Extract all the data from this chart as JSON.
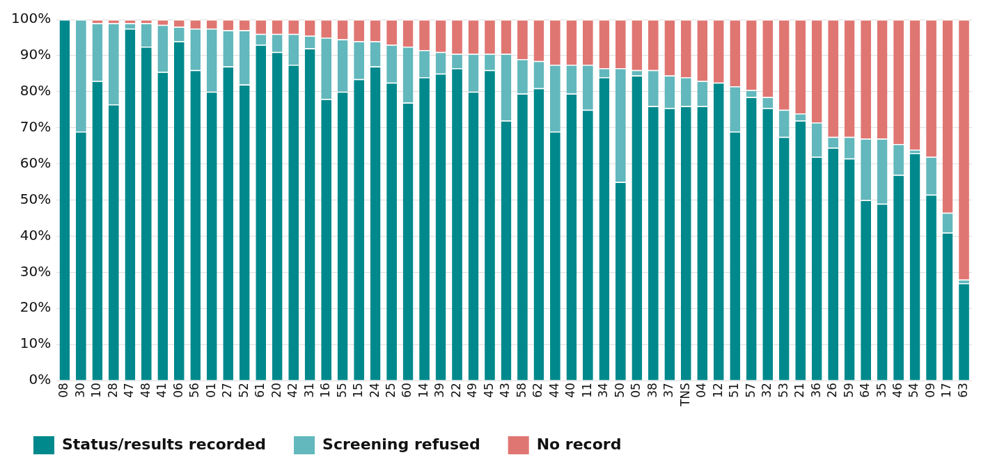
{
  "chart_data": {
    "type": "bar",
    "stacked": true,
    "legend": "bottom",
    "grid": "y",
    "categories": [
      "08",
      "30",
      "10",
      "28",
      "47",
      "48",
      "41",
      "06",
      "56",
      "01",
      "27",
      "52",
      "61",
      "20",
      "42",
      "31",
      "16",
      "55",
      "15",
      "24",
      "25",
      "60",
      "14",
      "39",
      "22",
      "49",
      "45",
      "43",
      "58",
      "62",
      "44",
      "40",
      "11",
      "34",
      "50",
      "05",
      "38",
      "37",
      "TNS",
      "04",
      "12",
      "51",
      "57",
      "32",
      "53",
      "21",
      "36",
      "26",
      "59",
      "64",
      "35",
      "46",
      "54",
      "09",
      "17",
      "63"
    ],
    "ylim": [
      0,
      100
    ],
    "yticks": [
      {
        "value": 0,
        "label": "0%"
      },
      {
        "value": 10,
        "label": "10%"
      },
      {
        "value": 20,
        "label": "20%"
      },
      {
        "value": 30,
        "label": "30%"
      },
      {
        "value": 40,
        "label": "40%"
      },
      {
        "value": 50,
        "label": "50%"
      },
      {
        "value": 60,
        "label": "60%"
      },
      {
        "value": 70,
        "label": "70%"
      },
      {
        "value": 80,
        "label": "80%"
      },
      {
        "value": 90,
        "label": "90%"
      },
      {
        "value": 100,
        "label": "100%"
      }
    ],
    "series": [
      {
        "name": "Status/results recorded",
        "color": "#00898c",
        "values": [
          100,
          69,
          83,
          76.5,
          97.5,
          92.5,
          85.5,
          94,
          86,
          80,
          87,
          82,
          93,
          91,
          87.5,
          92,
          78,
          80,
          83.5,
          87,
          82.5,
          77,
          84,
          85,
          86.5,
          80,
          86,
          72,
          79.5,
          81,
          69,
          79.5,
          75,
          84,
          55,
          84.5,
          76,
          75.5,
          76,
          76,
          82.5,
          69,
          78.5,
          75.5,
          67.5,
          72,
          62,
          64.5,
          61.5,
          50,
          49,
          57,
          63,
          51.5,
          41,
          27
        ]
      },
      {
        "name": "Screening refused",
        "color": "#62b8bc",
        "values": [
          0,
          31,
          16,
          22.5,
          1.5,
          6.5,
          13,
          4,
          11.5,
          17.5,
          10,
          15,
          3,
          5,
          8.5,
          3.5,
          17,
          14.5,
          10.5,
          7,
          10.5,
          15.5,
          7.5,
          6,
          4,
          10.5,
          4.5,
          18.5,
          9.5,
          7.5,
          18.5,
          8,
          12.5,
          2.5,
          31.5,
          1.5,
          10,
          9,
          8,
          7,
          0,
          12.5,
          2,
          3,
          7.5,
          2,
          9.5,
          3,
          6,
          17,
          18,
          8.5,
          1,
          10.5,
          5.5,
          1
        ]
      },
      {
        "name": "No record",
        "color": "#e07672",
        "values": [
          0,
          0,
          1,
          1,
          1,
          1,
          1.5,
          2,
          2.5,
          2.5,
          3,
          3,
          4,
          4,
          4,
          4.5,
          5,
          5.5,
          6,
          6,
          7,
          7.5,
          8.5,
          9,
          9.5,
          9.5,
          9.5,
          9.5,
          11,
          11.5,
          12.5,
          12.5,
          12.5,
          13.5,
          13.5,
          14,
          14,
          15.5,
          16,
          17,
          17.5,
          18.5,
          19.5,
          21.5,
          25,
          26,
          28.5,
          32.5,
          32.5,
          33,
          33,
          34.5,
          36,
          38,
          53.5,
          72
        ]
      }
    ]
  }
}
